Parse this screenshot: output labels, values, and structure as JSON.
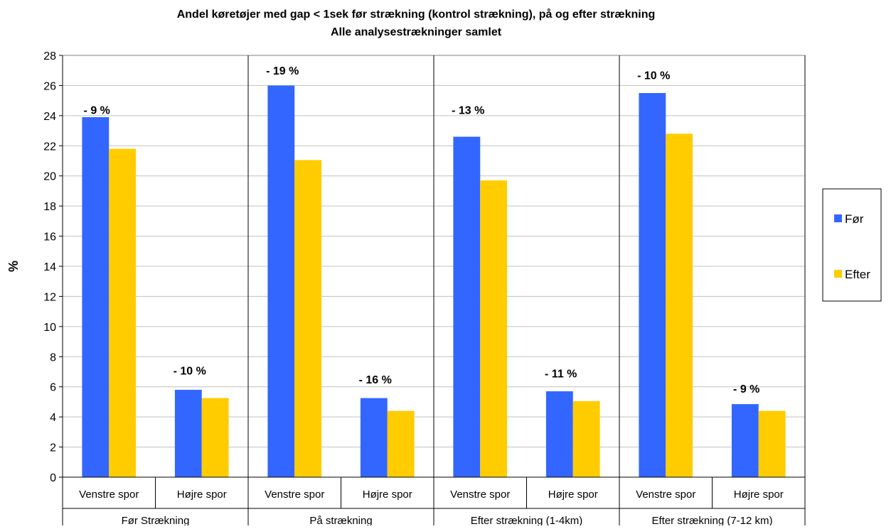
{
  "chart_data": {
    "type": "bar",
    "title": "Andel køretøjer med gap < 1sek før strækning (kontrol strækning), på og efter strækning",
    "subtitle": "Alle analysestrækninger samlet",
    "ylabel": "%",
    "xlabel": "",
    "ylim": [
      0,
      28
    ],
    "yticks": [
      0,
      2,
      4,
      6,
      8,
      10,
      12,
      14,
      16,
      18,
      20,
      22,
      24,
      26,
      28
    ],
    "grid": "horizontal",
    "legend_position": "right",
    "groups": [
      "Før Strækning",
      "På strækning",
      "Efter strækning (1-4km)",
      "Efter strækning  (7-12 km)"
    ],
    "categories": [
      "Venstre spor",
      "Højre spor",
      "Venstre spor",
      "Højre spor",
      "Venstre spor",
      "Højre spor",
      "Venstre spor",
      "Højre spor"
    ],
    "series": [
      {
        "name": "Før",
        "color": "#3366ff",
        "values": [
          23.9,
          5.8,
          26.0,
          5.25,
          22.6,
          5.7,
          25.5,
          4.85
        ]
      },
      {
        "name": "Efter",
        "color": "#ffcc00",
        "values": [
          21.8,
          5.25,
          21.05,
          4.4,
          19.7,
          5.05,
          22.8,
          4.4
        ]
      }
    ],
    "annotations": [
      "- 9 %",
      "- 10 %",
      "- 19 %",
      "- 16 %",
      "- 13 %",
      "- 11 %",
      "- 10 %",
      "- 9 %"
    ],
    "annotation_values": [
      24.4,
      7.1,
      27.0,
      6.5,
      24.4,
      6.9,
      26.7,
      5.9
    ]
  }
}
